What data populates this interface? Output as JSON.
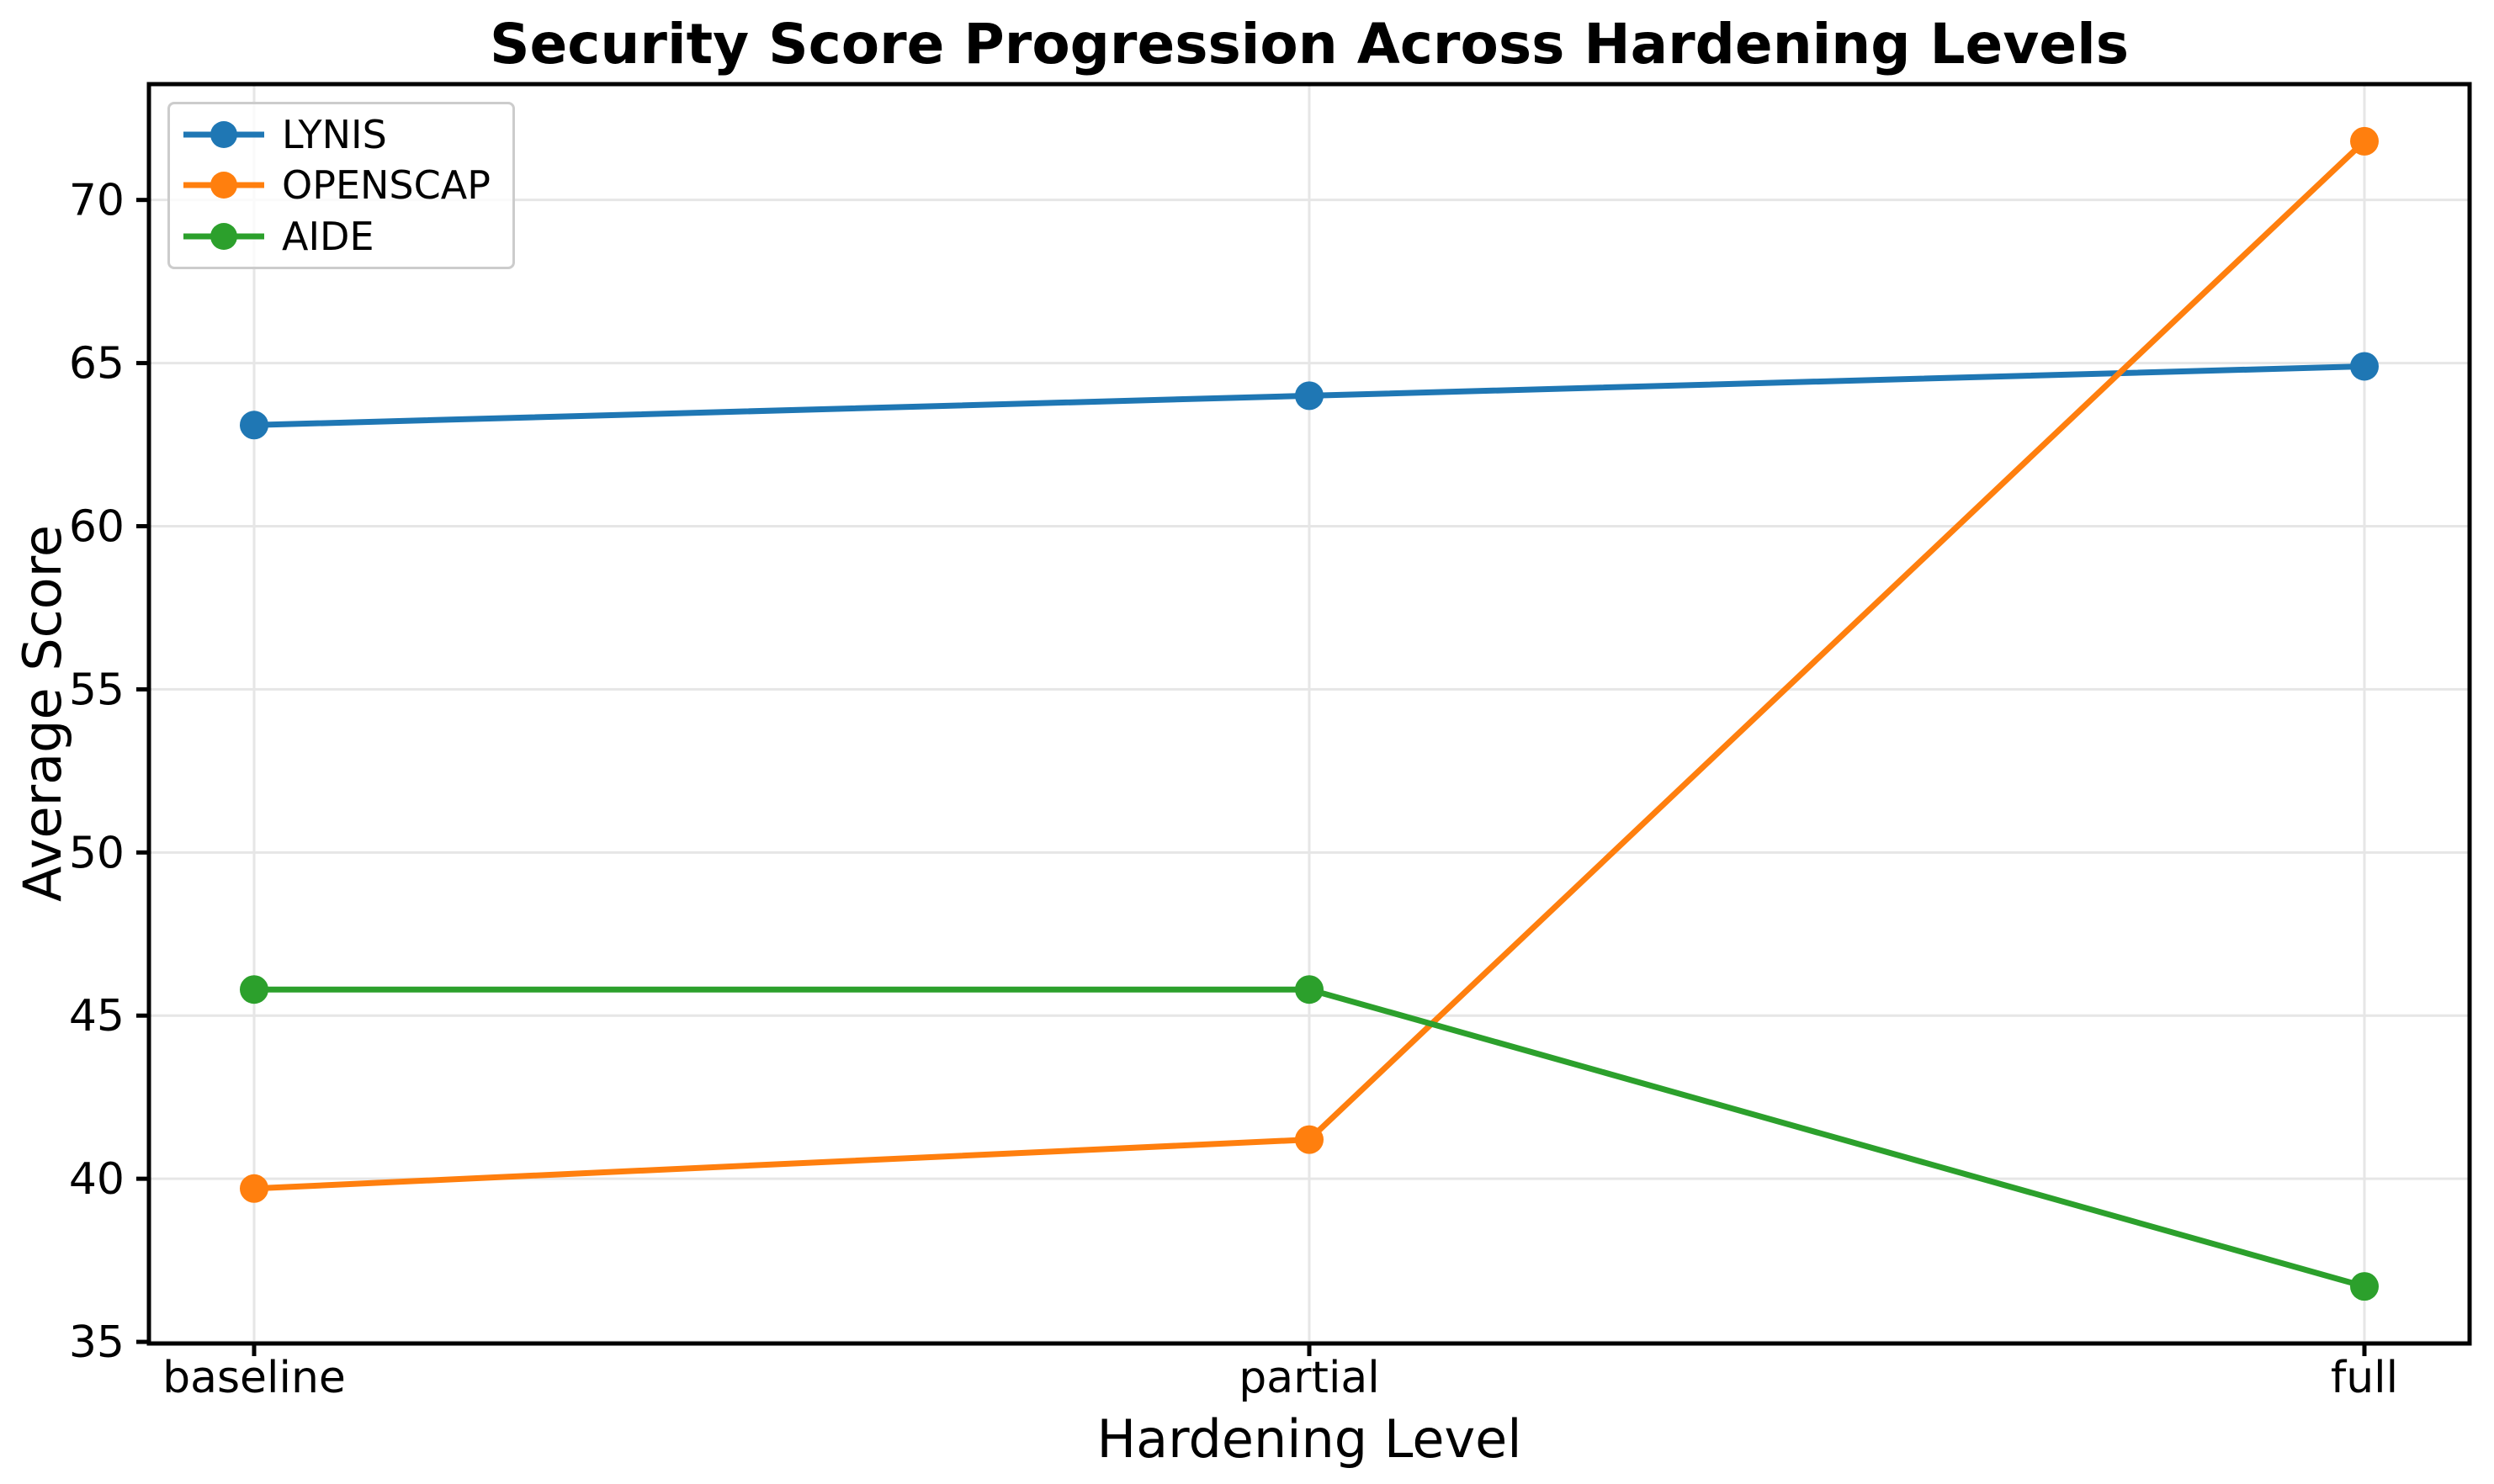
{
  "chart_data": {
    "type": "line",
    "title": "Security Score Progression Across Hardening Levels",
    "xlabel": "Hardening Level",
    "ylabel": "Average Score",
    "categories": [
      "baseline",
      "partial",
      "full"
    ],
    "series": [
      {
        "name": "LYNIS",
        "color": "#1f77b4",
        "values": [
          63.1,
          64.0,
          64.9
        ]
      },
      {
        "name": "OPENSCAP",
        "color": "#ff7f0e",
        "values": [
          39.7,
          41.2,
          71.8
        ]
      },
      {
        "name": "AIDE",
        "color": "#2ca02c",
        "values": [
          45.8,
          45.8,
          36.7
        ]
      }
    ],
    "yticks": [
      35,
      40,
      45,
      50,
      55,
      60,
      65,
      70
    ],
    "ylim": [
      34.95,
      73.55
    ],
    "grid": true,
    "legend_position": "upper left",
    "colors": {
      "grid": "#e6e6e6",
      "spine": "#000000",
      "text": "#000000",
      "background": "#ffffff",
      "legend_border": "#cccccc"
    }
  }
}
